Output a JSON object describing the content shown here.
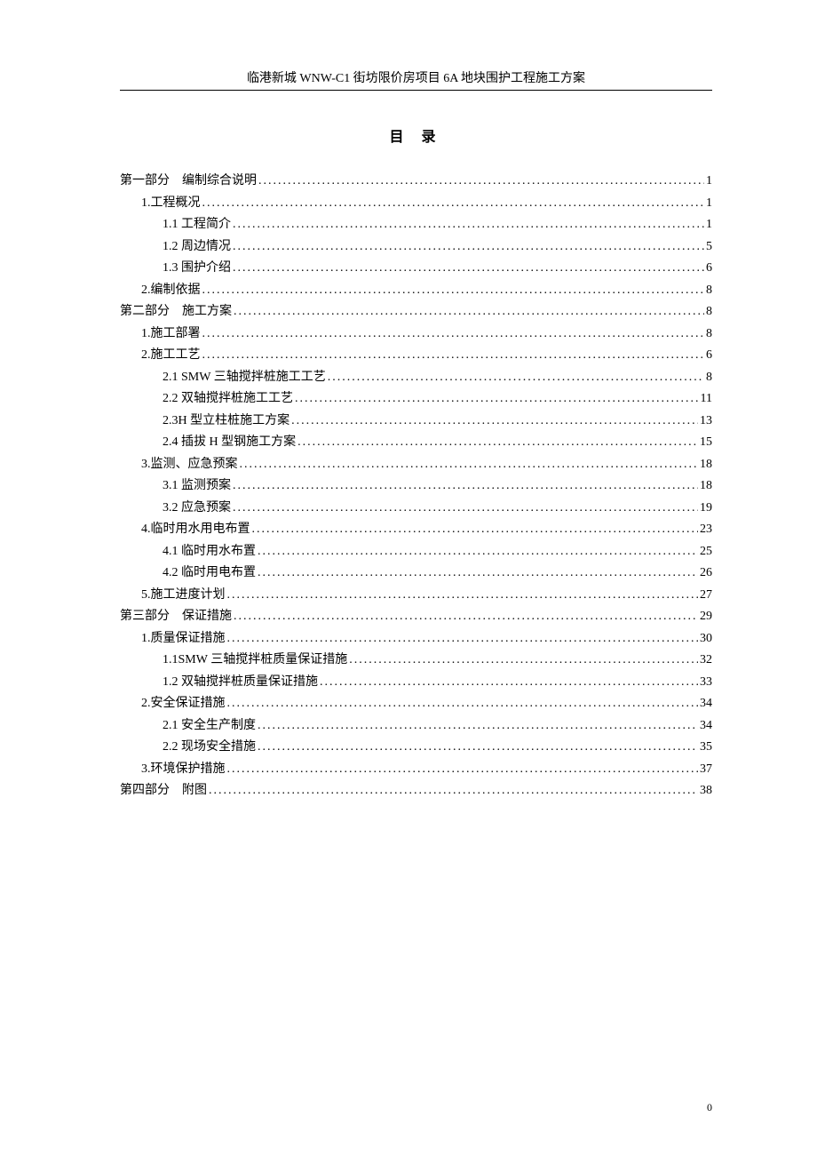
{
  "header": "临港新城 WNW-C1 街坊限价房项目 6A 地块围护工程施工方案",
  "title": "目 录",
  "pageNumber": "0",
  "toc": [
    {
      "level": 0,
      "label": "第一部分　编制综合说明",
      "page": "1"
    },
    {
      "level": 1,
      "label": "1.工程概况",
      "page": "1"
    },
    {
      "level": 2,
      "label": "1.1 工程简介",
      "page": "1"
    },
    {
      "level": 2,
      "label": "1.2 周边情况",
      "page": "5"
    },
    {
      "level": 2,
      "label": "1.3 围护介绍",
      "page": "6"
    },
    {
      "level": 1,
      "label": "2.编制依据",
      "page": "8"
    },
    {
      "level": 0,
      "label": "第二部分　施工方案",
      "page": "8"
    },
    {
      "level": 1,
      "label": "1.施工部署",
      "page": "8"
    },
    {
      "level": 1,
      "label": "2.施工工艺",
      "page": "6"
    },
    {
      "level": 2,
      "label": "2.1 SMW 三轴搅拌桩施工工艺",
      "page": "8"
    },
    {
      "level": 2,
      "label": "2.2 双轴搅拌桩施工工艺",
      "page": "11"
    },
    {
      "level": 2,
      "label": "2.3H 型立柱桩施工方案",
      "page": "13"
    },
    {
      "level": 2,
      "label": "2.4 插拔 H 型钢施工方案",
      "page": "15"
    },
    {
      "level": 1,
      "label": "3.监测、应急预案",
      "page": "18"
    },
    {
      "level": 2,
      "label": "3.1 监测预案",
      "page": "18"
    },
    {
      "level": 2,
      "label": "3.2 应急预案",
      "page": "19"
    },
    {
      "level": 1,
      "label": "4.临时用水用电布置",
      "page": "23"
    },
    {
      "level": 2,
      "label": "4.1 临时用水布置",
      "page": "25"
    },
    {
      "level": 2,
      "label": "4.2 临时用电布置",
      "page": "26"
    },
    {
      "level": 1,
      "label": "5.施工进度计划",
      "page": "27"
    },
    {
      "level": 0,
      "label": "第三部分　保证措施",
      "page": "29"
    },
    {
      "level": 1,
      "label": "1.质量保证措施",
      "page": "30"
    },
    {
      "level": 2,
      "label": "1.1SMW 三轴搅拌桩质量保证措施",
      "page": "32"
    },
    {
      "level": 2,
      "label": "1.2 双轴搅拌桩质量保证措施",
      "page": "33"
    },
    {
      "level": 1,
      "label": "2.安全保证措施",
      "page": "34"
    },
    {
      "level": 2,
      "label": "2.1 安全生产制度",
      "page": "34"
    },
    {
      "level": 2,
      "label": "2.2 现场安全措施",
      "page": "35"
    },
    {
      "level": 1,
      "label": "3.环境保护措施",
      "page": "37"
    },
    {
      "level": 0,
      "label": "第四部分　附图",
      "page": "38"
    }
  ]
}
